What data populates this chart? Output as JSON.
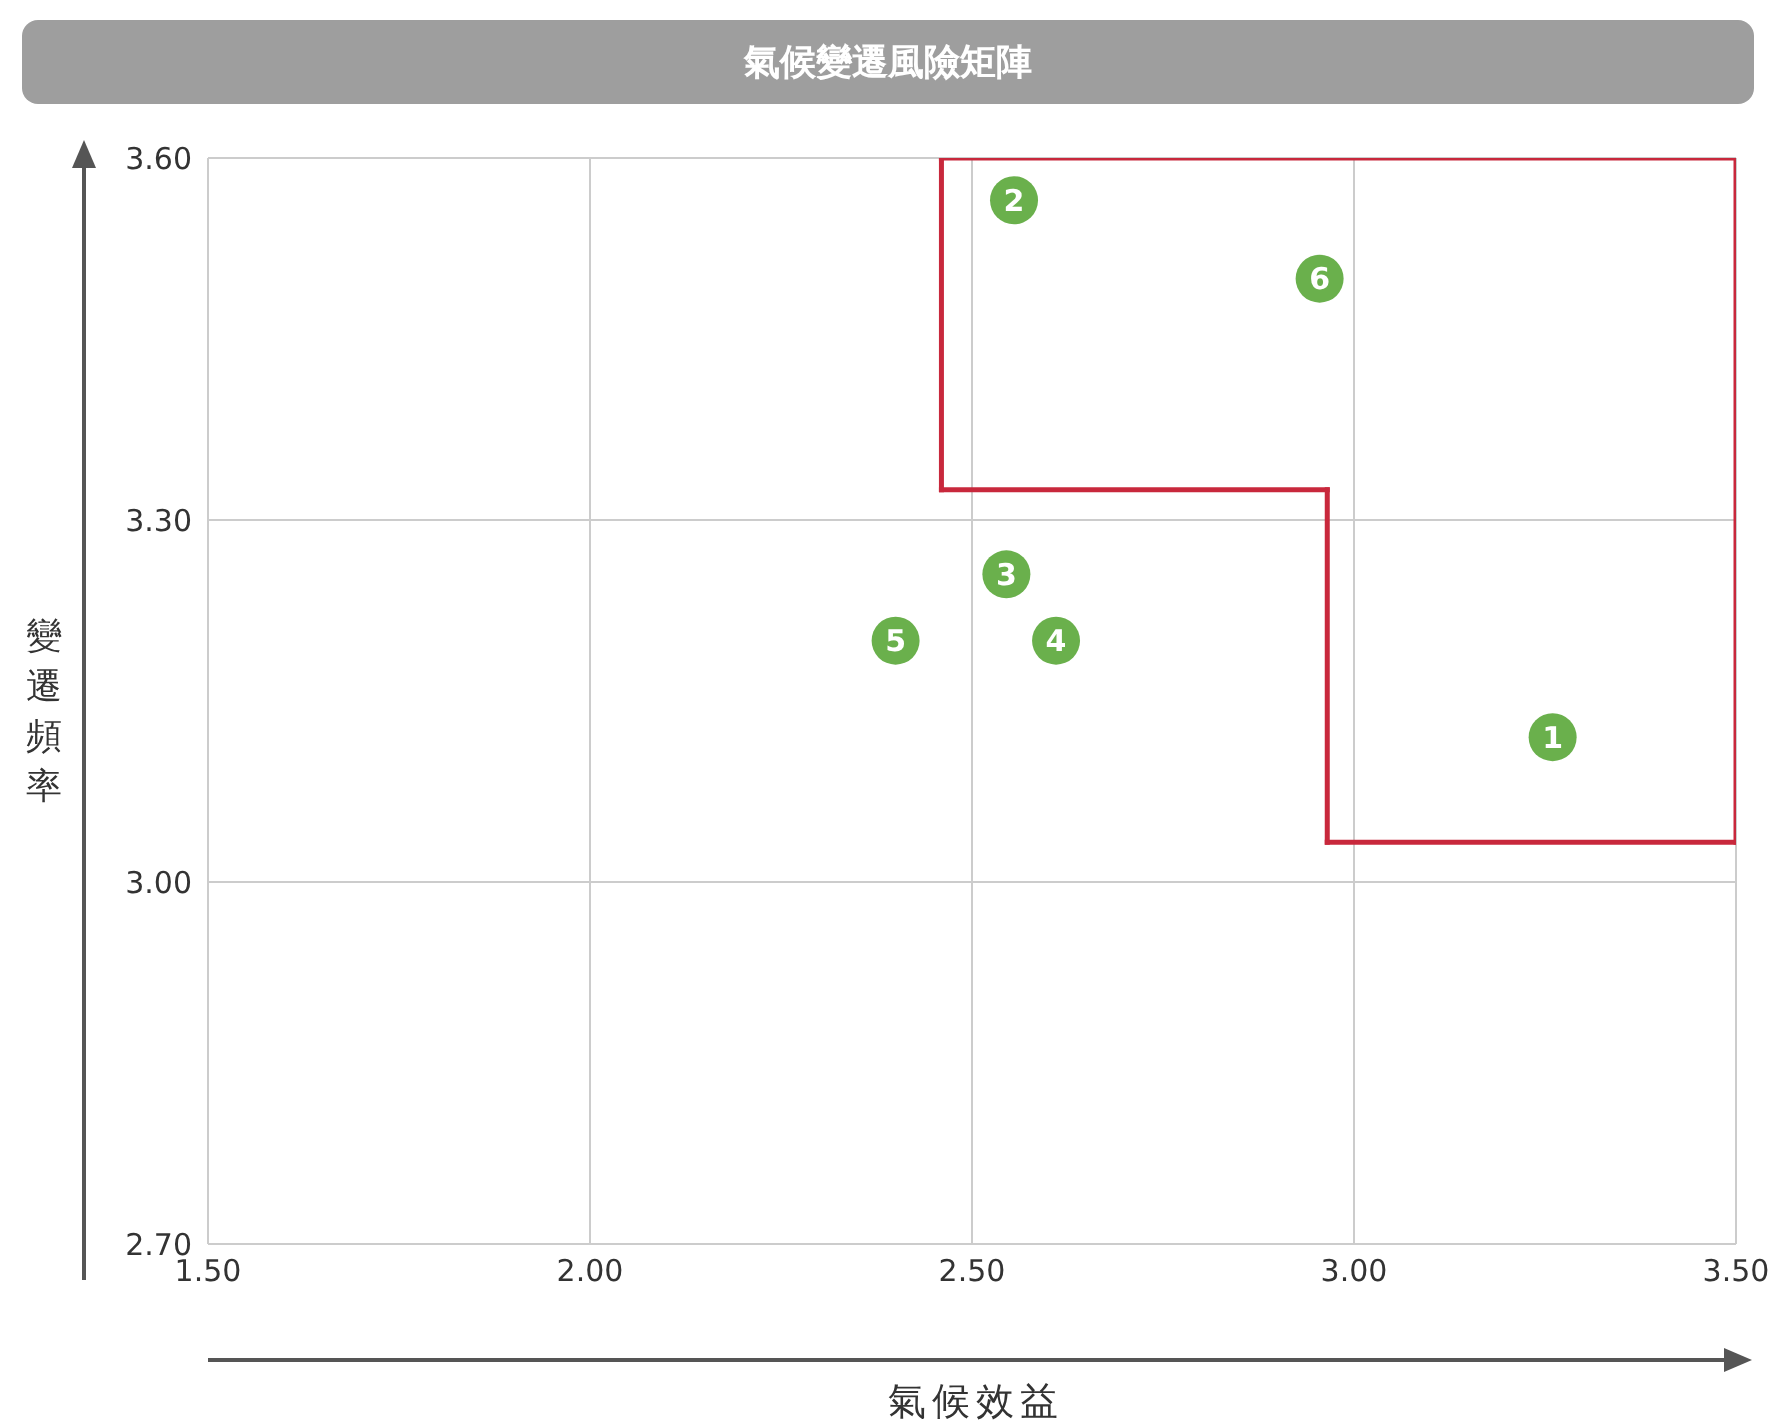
{
  "chart_data": {
    "type": "scatter",
    "title": "氣候變遷風險矩陣",
    "xlabel": "氣候效益",
    "ylabel": "變遷頻率",
    "series": [
      {
        "type": "scatter",
        "color": "#6ab04c",
        "marker": "circle",
        "x": [
          3.26,
          2.555,
          2.545,
          2.61,
          2.4,
          2.955
        ],
        "values": [
          3.12,
          3.565,
          3.255,
          3.2,
          3.2,
          3.5
        ]
      },
      {
        "type": "line",
        "color": "#c8283c",
        "marker": "none",
        "x": [
          2.46,
          3.5
        ],
        "values": [
          3.6,
          3.6
        ]
      },
      {
        "type": "line",
        "color": "#c8283c",
        "marker": "none",
        "x": [
          3.5,
          3.5
        ],
        "values": [
          3.6,
          3.033
        ]
      },
      {
        "type": "line",
        "color": "#c8283c",
        "marker": "none",
        "x": [
          2.965,
          3.5
        ],
        "values": [
          3.033,
          3.033
        ]
      },
      {
        "type": "line",
        "color": "#c8283c",
        "marker": "none",
        "x": [
          2.965,
          2.965
        ],
        "values": [
          3.033,
          3.325
        ]
      },
      {
        "type": "line",
        "color": "#c8283c",
        "marker": "none",
        "x": [
          2.46,
          2.965
        ],
        "values": [
          3.325,
          3.325
        ]
      },
      {
        "type": "line",
        "color": "#c8283c",
        "marker": "none",
        "x": [
          2.46,
          2.46
        ],
        "values": [
          3.325,
          3.6
        ]
      }
    ],
    "annotations": [
      {
        "text": "1",
        "x": 3.26,
        "y": 3.12
      },
      {
        "text": "2",
        "x": 2.555,
        "y": 3.565
      },
      {
        "text": "3",
        "x": 2.545,
        "y": 3.255
      },
      {
        "text": "4",
        "x": 2.61,
        "y": 3.2
      },
      {
        "text": "5",
        "x": 2.4,
        "y": 3.2
      },
      {
        "text": "6",
        "x": 2.955,
        "y": 3.5
      }
    ],
    "xlim": [
      1.5,
      3.5
    ],
    "xticks": [
      {
        "value": 1.5,
        "label": "1.50"
      },
      {
        "value": 2,
        "label": "2.00"
      },
      {
        "value": 2.5,
        "label": "2.50"
      },
      {
        "value": 3,
        "label": "3.00"
      },
      {
        "value": 3.5,
        "label": "3.50"
      }
    ],
    "ylim": [
      2.7,
      3.6
    ],
    "yticks": [
      {
        "value": 2.7,
        "label": "2.70"
      },
      {
        "value": 3,
        "label": "3.00"
      },
      {
        "value": 3.3,
        "label": "3.30"
      },
      {
        "value": 3.6,
        "label": "3.60"
      }
    ],
    "grid": true
  }
}
